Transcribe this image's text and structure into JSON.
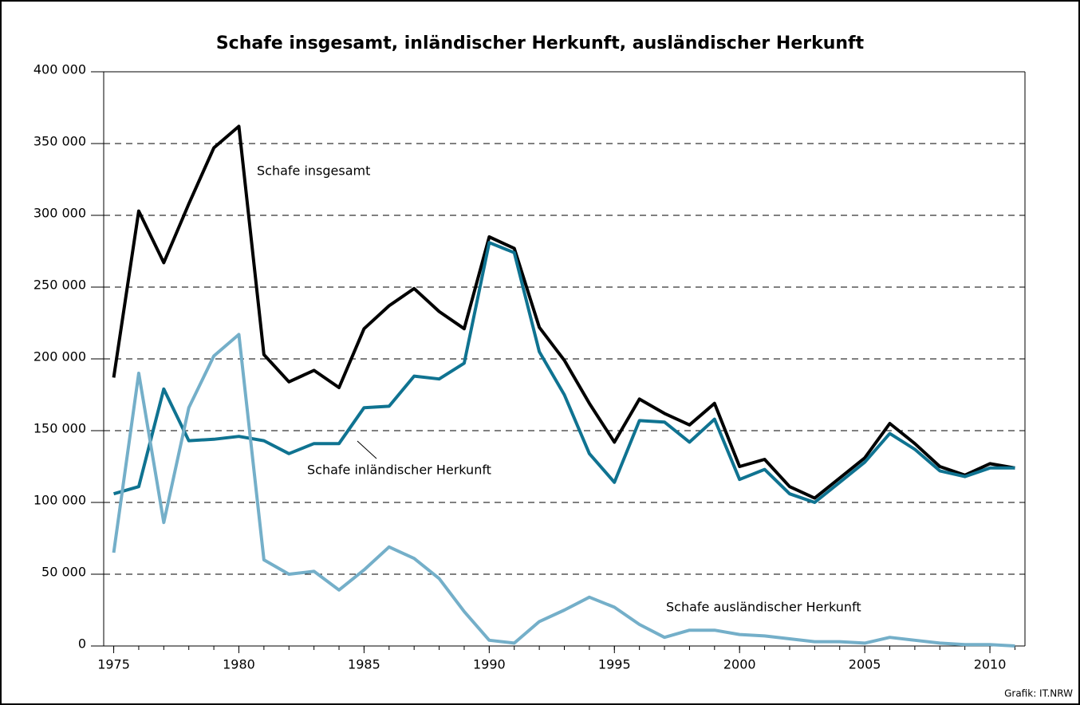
{
  "chart_data": {
    "type": "line",
    "title": "Schafe insgesamt, inländischer Herkunft, ausländischer Herkunft",
    "source": "Grafik: IT.NRW",
    "x": [
      1975,
      1976,
      1977,
      1978,
      1979,
      1980,
      1981,
      1982,
      1983,
      1984,
      1985,
      1986,
      1987,
      1988,
      1989,
      1990,
      1991,
      1992,
      1993,
      1994,
      1995,
      1996,
      1997,
      1998,
      1999,
      2000,
      2001,
      2002,
      2003,
      2004,
      2005,
      2006,
      2007,
      2008,
      2009,
      2010,
      2011
    ],
    "series": [
      {
        "name": "Schafe insgesamt",
        "color": "#000000",
        "values": [
          187000,
          303000,
          267000,
          308000,
          347000,
          362000,
          203000,
          184000,
          192000,
          180000,
          221000,
          237000,
          249000,
          233000,
          221000,
          285000,
          277000,
          222000,
          199000,
          169000,
          142000,
          172000,
          162000,
          154000,
          169000,
          125000,
          130000,
          111000,
          103000,
          117000,
          131000,
          155000,
          141000,
          125000,
          119000,
          127000,
          124000
        ]
      },
      {
        "name": "Schafe inländischer Herkunft",
        "color": "#0f7391",
        "values": [
          106000,
          111000,
          179000,
          143000,
          144000,
          146000,
          143000,
          134000,
          141000,
          141000,
          166000,
          167000,
          188000,
          186000,
          197000,
          281000,
          274000,
          205000,
          175000,
          134000,
          114000,
          157000,
          156000,
          142000,
          158000,
          116000,
          123000,
          106000,
          100000,
          114000,
          128000,
          148000,
          137000,
          122000,
          118000,
          124000,
          124000
        ]
      },
      {
        "name": "Schafe ausländischer Herkunft",
        "color": "#74afc9",
        "values": [
          65000,
          190000,
          86000,
          166000,
          202000,
          217000,
          60000,
          50000,
          52000,
          39000,
          53000,
          69000,
          61000,
          47000,
          24000,
          4000,
          2000,
          17000,
          25000,
          34000,
          27000,
          15000,
          6000,
          11000,
          11000,
          8000,
          7000,
          5000,
          3000,
          3000,
          2000,
          6000,
          4000,
          2000,
          1000,
          1000,
          0
        ]
      }
    ],
    "xlim": [
      1974.6,
      2011.4
    ],
    "xticks": [
      1975,
      1980,
      1985,
      1990,
      1995,
      2000,
      2005,
      2010
    ],
    "ylim": [
      0,
      400000
    ],
    "yticks": [
      0,
      {
        "value": 50000,
        "label": "50 000"
      },
      {
        "value": 100000,
        "label": "100 000"
      },
      {
        "value": 150000,
        "label": "150 000"
      },
      {
        "value": 200000,
        "label": "200 000"
      },
      {
        "value": 250000,
        "label": "250 000"
      },
      {
        "value": 300000,
        "label": "300 000"
      },
      {
        "value": 350000,
        "label": "350 000"
      },
      {
        "value": 400000,
        "label": "400 000"
      }
    ],
    "grid": true
  }
}
